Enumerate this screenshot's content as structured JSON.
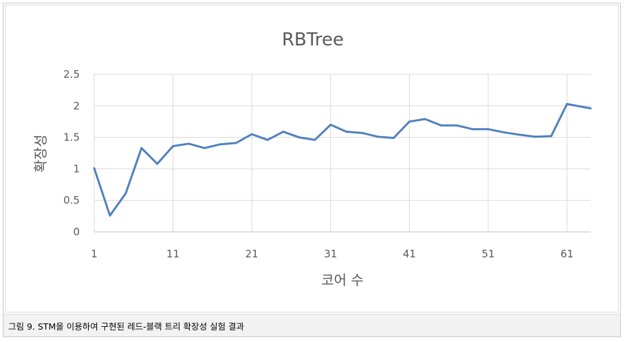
{
  "caption": "그림 9. STM을 이용하여 구현된 레드-블랙 트리 확장성 실험 결과",
  "chart_data": {
    "type": "line",
    "title": "RBTree",
    "xlabel": "코어 수",
    "ylabel": "확장성",
    "xlim": [
      1,
      64
    ],
    "ylim": [
      0,
      2.5
    ],
    "grid": true,
    "x_ticks": [
      "1",
      "11",
      "21",
      "31",
      "41",
      "51",
      "61"
    ],
    "y_ticks": [
      "0",
      "0.5",
      "1",
      "1.5",
      "2",
      "2.5"
    ],
    "series": [
      {
        "color": "#4f81bd",
        "x": [
          1,
          3,
          5,
          7,
          9,
          11,
          13,
          15,
          17,
          19,
          21,
          23,
          25,
          27,
          29,
          31,
          33,
          35,
          37,
          39,
          41,
          43,
          45,
          47,
          49,
          51,
          53,
          55,
          57,
          59,
          61,
          64
        ],
        "y": [
          1.01,
          0.26,
          0.61,
          1.33,
          1.08,
          1.36,
          1.4,
          1.33,
          1.39,
          1.41,
          1.55,
          1.46,
          1.59,
          1.5,
          1.46,
          1.7,
          1.59,
          1.57,
          1.51,
          1.49,
          1.75,
          1.79,
          1.69,
          1.69,
          1.63,
          1.63,
          1.58,
          1.54,
          1.51,
          1.52,
          2.03,
          1.96
        ]
      }
    ]
  }
}
